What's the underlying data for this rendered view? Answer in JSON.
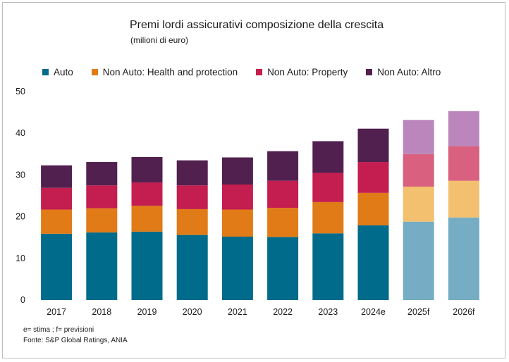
{
  "chart_data": {
    "type": "bar",
    "stacked": true,
    "title": "Premi lordi assicurativi composizione della crescita",
    "subtitle": "(milioni di euro)",
    "categories": [
      "2017",
      "2018",
      "2019",
      "2020",
      "2021",
      "2022",
      "2023",
      "2024e",
      "2025f",
      "2026f"
    ],
    "forecast_from_index": 8,
    "series": [
      {
        "name": "Auto",
        "color": "#006b8a",
        "forecast_color": "#76adc4",
        "values": [
          15.9,
          16.2,
          16.4,
          15.6,
          15.2,
          15.1,
          16.0,
          17.9,
          18.8,
          19.8
        ]
      },
      {
        "name": "Non Auto: Health and protection",
        "color": "#e07b17",
        "forecast_color": "#f2c06e",
        "values": [
          5.8,
          5.8,
          6.2,
          6.2,
          6.5,
          7.0,
          7.5,
          7.8,
          8.4,
          8.8
        ]
      },
      {
        "name": "Non Auto: Property",
        "color": "#c41d4f",
        "forecast_color": "#d9607f",
        "values": [
          5.2,
          5.5,
          5.6,
          5.7,
          6.0,
          6.5,
          7.0,
          7.4,
          7.8,
          8.3
        ]
      },
      {
        "name": "Non Auto: Altro",
        "color": "#52204e",
        "forecast_color": "#bb86bb",
        "values": [
          5.4,
          5.6,
          6.1,
          6.0,
          6.5,
          7.1,
          7.6,
          8.0,
          8.2,
          8.4
        ]
      }
    ],
    "ylim": [
      0,
      50
    ],
    "yticks": [
      0,
      10,
      20,
      30,
      40,
      50
    ],
    "grid": false,
    "legend_position": "top"
  },
  "notes": {
    "line1": "e= stima ; f= previsioni",
    "line2": "Fonte: S&P Global Ratings, ANIA"
  }
}
